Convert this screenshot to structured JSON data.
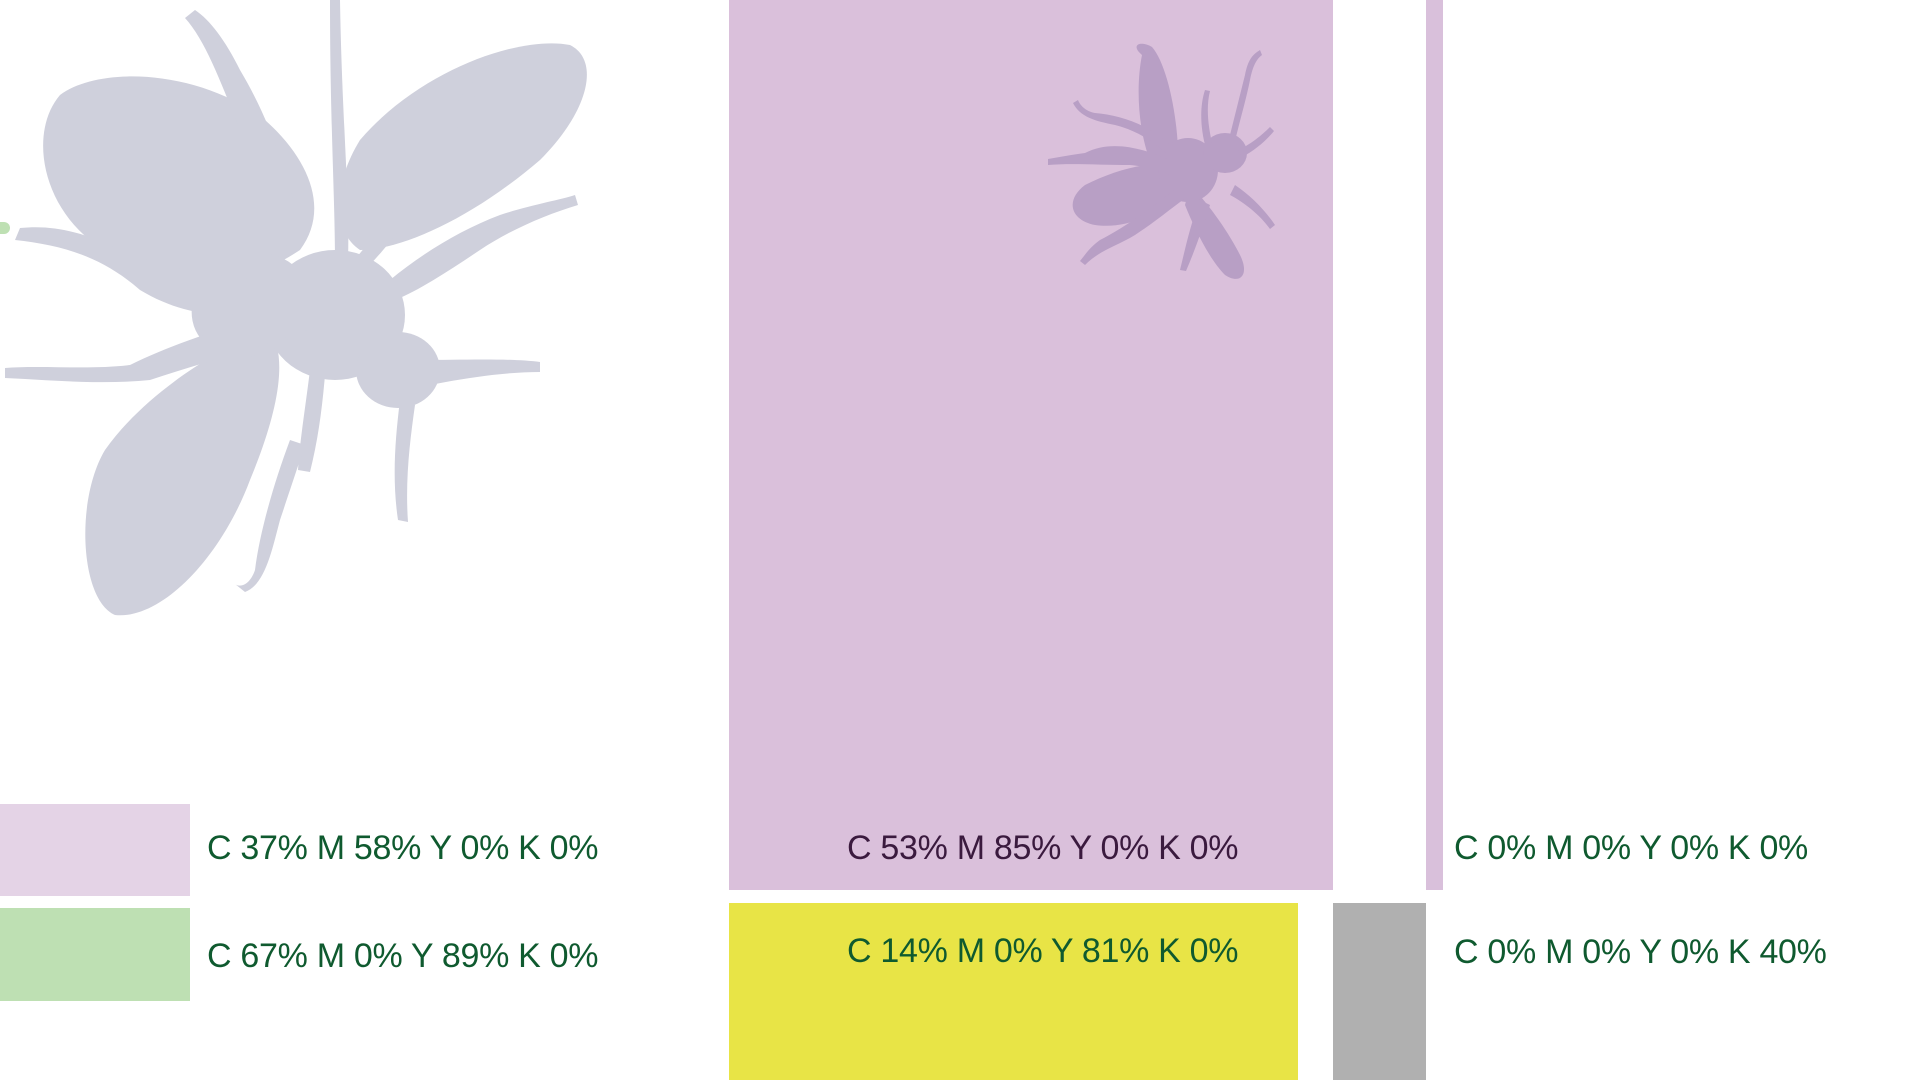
{
  "colors": {
    "background": "#ffffff",
    "lilac_light": "#e4d3e6",
    "lilac": "#d9c0db",
    "lilac_panel": "#dac0db",
    "bee_gray": "#cfd0dc",
    "bee_purple": "#b89fc5",
    "green_swatch": "#bee0b3",
    "yellow": "#e8e446",
    "gray": "#b0b0b0",
    "text_green": "#0f5a2f",
    "text_dark": "#3a1a3e"
  },
  "swatches": {
    "left_lilac": {
      "label": "C 37% M 58% Y 0% K 0%"
    },
    "left_green": {
      "label": "C 67% M 0% Y 89% K 0%"
    },
    "center_panel": {
      "label": "C 53% M 85% Y 0% K 0%"
    },
    "center_yellow": {
      "label": "C 14% M 0% Y 81% K 0%"
    },
    "right_white": {
      "label": "C 0% M 0% Y 0% K 0%"
    },
    "right_gray": {
      "label": "C 0% M 0% Y 0% K 40%"
    }
  }
}
